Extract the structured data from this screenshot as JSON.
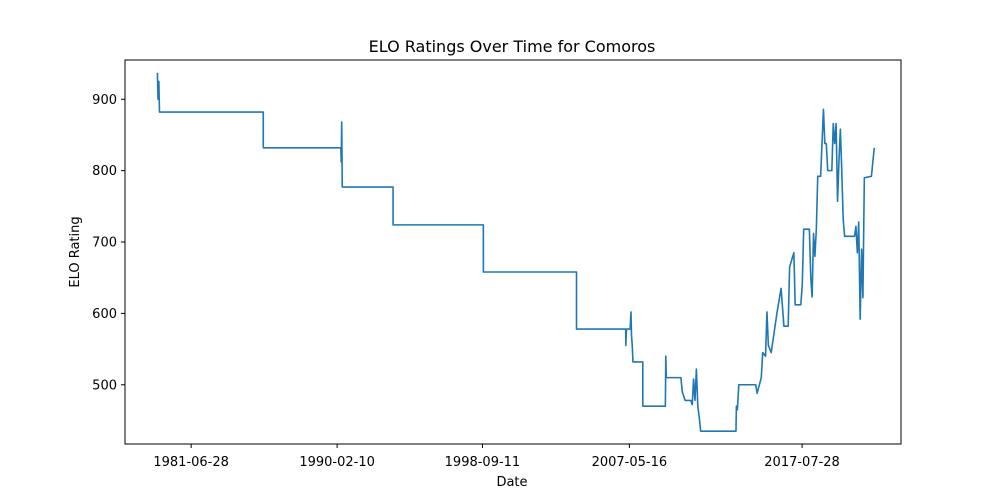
{
  "chart_data": {
    "type": "line",
    "title": "ELO Ratings Over Time for Comoros",
    "xlabel": "Date",
    "ylabel": "ELO Rating",
    "x_ticks": [
      "1981-06-28",
      "1990-02-10",
      "1998-09-11",
      "2007-05-16",
      "2017-07-28"
    ],
    "y_ticks": [
      500,
      600,
      700,
      800,
      900
    ],
    "xlim": [
      "1977-08-01",
      "2023-06-01"
    ],
    "ylim": [
      417,
      955
    ],
    "grid": false,
    "line_color": "#1f77b4",
    "series": [
      {
        "points": [
          [
            "1979-07-01",
            937
          ],
          [
            "1979-07-15",
            900
          ],
          [
            "1979-08-01",
            925
          ],
          [
            "1979-08-15",
            882
          ],
          [
            "1985-10-01",
            882
          ],
          [
            "1985-10-01",
            832
          ],
          [
            "1990-05-01",
            832
          ],
          [
            "1990-05-10",
            812
          ],
          [
            "1990-05-20",
            868
          ],
          [
            "1990-06-01",
            777
          ],
          [
            "1993-06-01",
            777
          ],
          [
            "1993-06-01",
            724
          ],
          [
            "1998-10-01",
            724
          ],
          [
            "1998-10-01",
            658
          ],
          [
            "2004-04-01",
            658
          ],
          [
            "2004-04-01",
            578
          ],
          [
            "2007-03-01",
            578
          ],
          [
            "2007-03-01",
            555
          ],
          [
            "2007-03-15",
            578
          ],
          [
            "2007-06-01",
            578
          ],
          [
            "2007-06-20",
            602
          ],
          [
            "2007-07-01",
            570
          ],
          [
            "2007-07-20",
            552
          ],
          [
            "2007-08-01",
            532
          ],
          [
            "2008-03-01",
            532
          ],
          [
            "2008-03-01",
            470
          ],
          [
            "2009-07-01",
            470
          ],
          [
            "2009-07-10",
            540
          ],
          [
            "2009-07-20",
            510
          ],
          [
            "2010-06-01",
            510
          ],
          [
            "2010-07-01",
            490
          ],
          [
            "2010-09-01",
            478
          ],
          [
            "2011-01-01",
            478
          ],
          [
            "2011-02-01",
            472
          ],
          [
            "2011-03-01",
            508
          ],
          [
            "2011-04-01",
            478
          ],
          [
            "2011-05-01",
            522
          ],
          [
            "2011-06-01",
            470
          ],
          [
            "2011-07-01",
            455
          ],
          [
            "2011-08-01",
            435
          ],
          [
            "2013-09-01",
            435
          ],
          [
            "2013-09-10",
            470
          ],
          [
            "2013-10-01",
            465
          ],
          [
            "2013-11-01",
            500
          ],
          [
            "2014-11-01",
            500
          ],
          [
            "2014-12-01",
            488
          ],
          [
            "2015-03-01",
            510
          ],
          [
            "2015-04-01",
            545
          ],
          [
            "2015-06-01",
            540
          ],
          [
            "2015-07-01",
            602
          ],
          [
            "2015-08-01",
            555
          ],
          [
            "2015-10-01",
            545
          ],
          [
            "2016-02-01",
            600
          ],
          [
            "2016-05-01",
            635
          ],
          [
            "2016-07-01",
            582
          ],
          [
            "2016-10-01",
            582
          ],
          [
            "2016-11-01",
            665
          ],
          [
            "2017-02-01",
            685
          ],
          [
            "2017-03-01",
            612
          ],
          [
            "2017-07-01",
            612
          ],
          [
            "2017-08-01",
            640
          ],
          [
            "2017-09-01",
            718
          ],
          [
            "2018-01-01",
            718
          ],
          [
            "2018-02-01",
            650
          ],
          [
            "2018-03-01",
            623
          ],
          [
            "2018-04-01",
            712
          ],
          [
            "2018-05-01",
            680
          ],
          [
            "2018-06-01",
            718
          ],
          [
            "2018-07-01",
            792
          ],
          [
            "2018-09-01",
            792
          ],
          [
            "2018-10-01",
            838
          ],
          [
            "2018-11-01",
            886
          ],
          [
            "2018-12-01",
            838
          ],
          [
            "2019-01-01",
            838
          ],
          [
            "2019-02-01",
            800
          ],
          [
            "2019-05-01",
            800
          ],
          [
            "2019-06-01",
            866
          ],
          [
            "2019-07-01",
            838
          ],
          [
            "2019-08-01",
            866
          ],
          [
            "2019-09-01",
            757
          ],
          [
            "2019-10-01",
            812
          ],
          [
            "2019-11-01",
            858
          ],
          [
            "2019-12-01",
            800
          ],
          [
            "2020-01-01",
            732
          ],
          [
            "2020-02-01",
            708
          ],
          [
            "2020-09-01",
            708
          ],
          [
            "2020-10-01",
            722
          ],
          [
            "2020-11-01",
            685
          ],
          [
            "2020-12-01",
            728
          ],
          [
            "2021-01-01",
            592
          ],
          [
            "2021-02-01",
            690
          ],
          [
            "2021-03-01",
            622
          ],
          [
            "2021-04-01",
            790
          ],
          [
            "2021-09-01",
            792
          ],
          [
            "2021-11-01",
            832
          ]
        ]
      }
    ]
  }
}
